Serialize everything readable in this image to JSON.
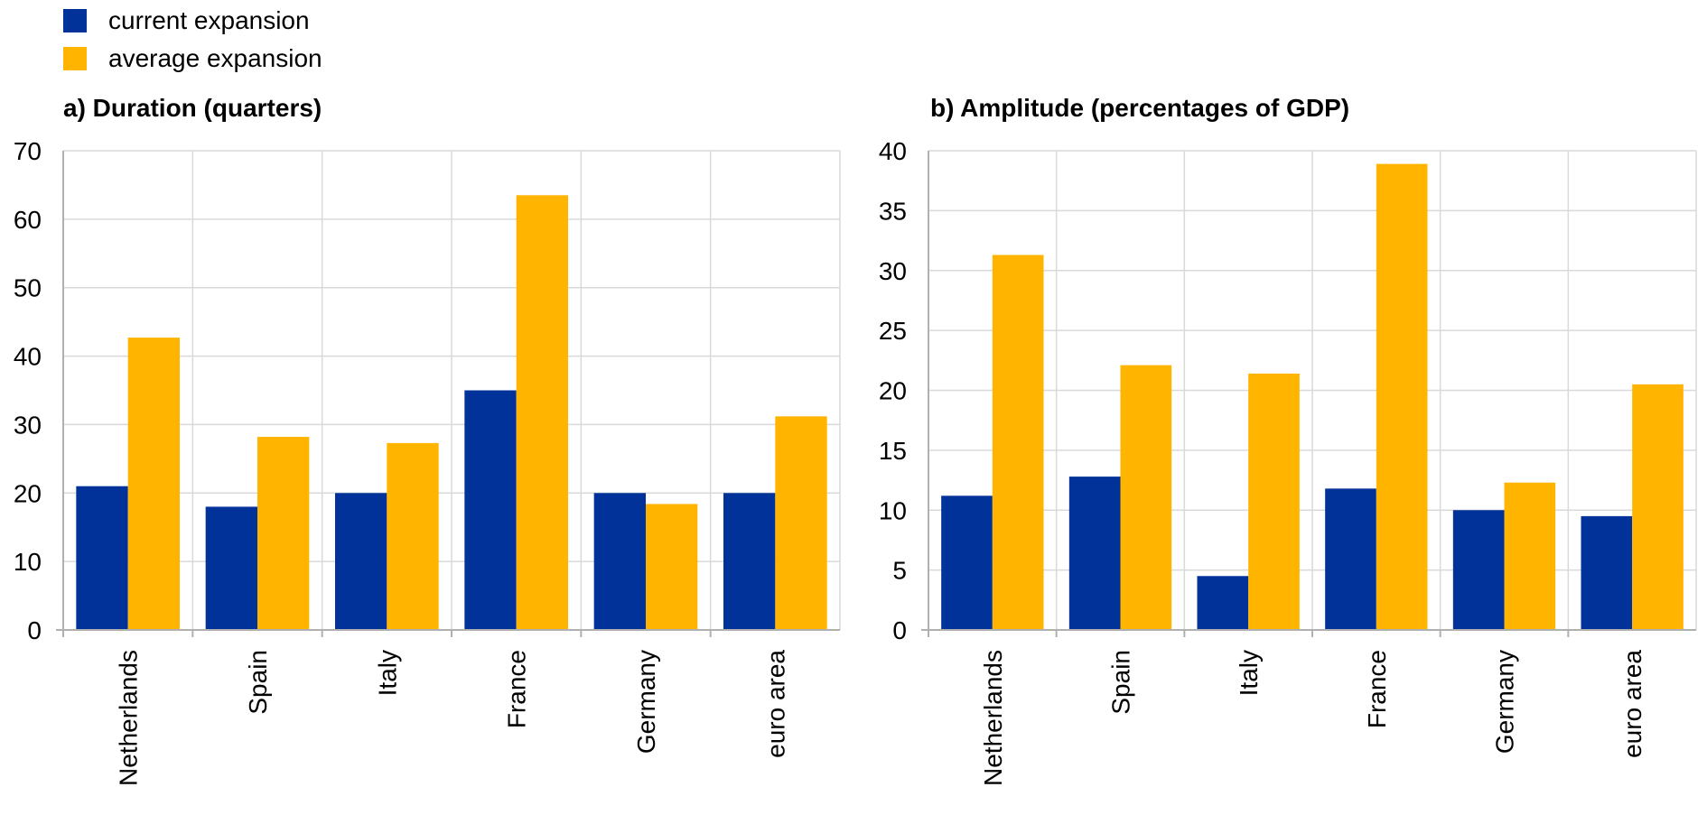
{
  "legend": {
    "current_label": "current expansion",
    "average_label": "average expansion"
  },
  "colors": {
    "current": "#003299",
    "average": "#FFB400",
    "grid": "#d9d9d9",
    "axis": "#b0b0b0"
  },
  "chart_data": [
    {
      "type": "bar",
      "title": "a) Duration (quarters)",
      "categories": [
        "Netherlands",
        "Spain",
        "Italy",
        "France",
        "Germany",
        "euro area"
      ],
      "series": [
        {
          "name": "current expansion",
          "values": [
            21,
            18,
            20,
            35,
            20,
            20
          ]
        },
        {
          "name": "average expansion",
          "values": [
            42.7,
            28.2,
            27.3,
            63.5,
            18.4,
            31.2
          ]
        }
      ],
      "ylim": [
        0,
        70
      ],
      "yticks": [
        0,
        10,
        20,
        30,
        40,
        50,
        60,
        70
      ],
      "grid": true,
      "legend": "top-left"
    },
    {
      "type": "bar",
      "title": "b) Amplitude (percentages of GDP)",
      "categories": [
        "Netherlands",
        "Spain",
        "Italy",
        "France",
        "Germany",
        "euro area"
      ],
      "series": [
        {
          "name": "current expansion",
          "values": [
            11.2,
            12.8,
            4.5,
            11.8,
            10.0,
            9.5
          ]
        },
        {
          "name": "average expansion",
          "values": [
            31.3,
            22.1,
            21.4,
            38.9,
            12.3,
            20.5
          ]
        }
      ],
      "ylim": [
        0,
        40
      ],
      "yticks": [
        0,
        5,
        10,
        15,
        20,
        25,
        30,
        35,
        40
      ],
      "grid": true,
      "legend": "top-left"
    }
  ]
}
